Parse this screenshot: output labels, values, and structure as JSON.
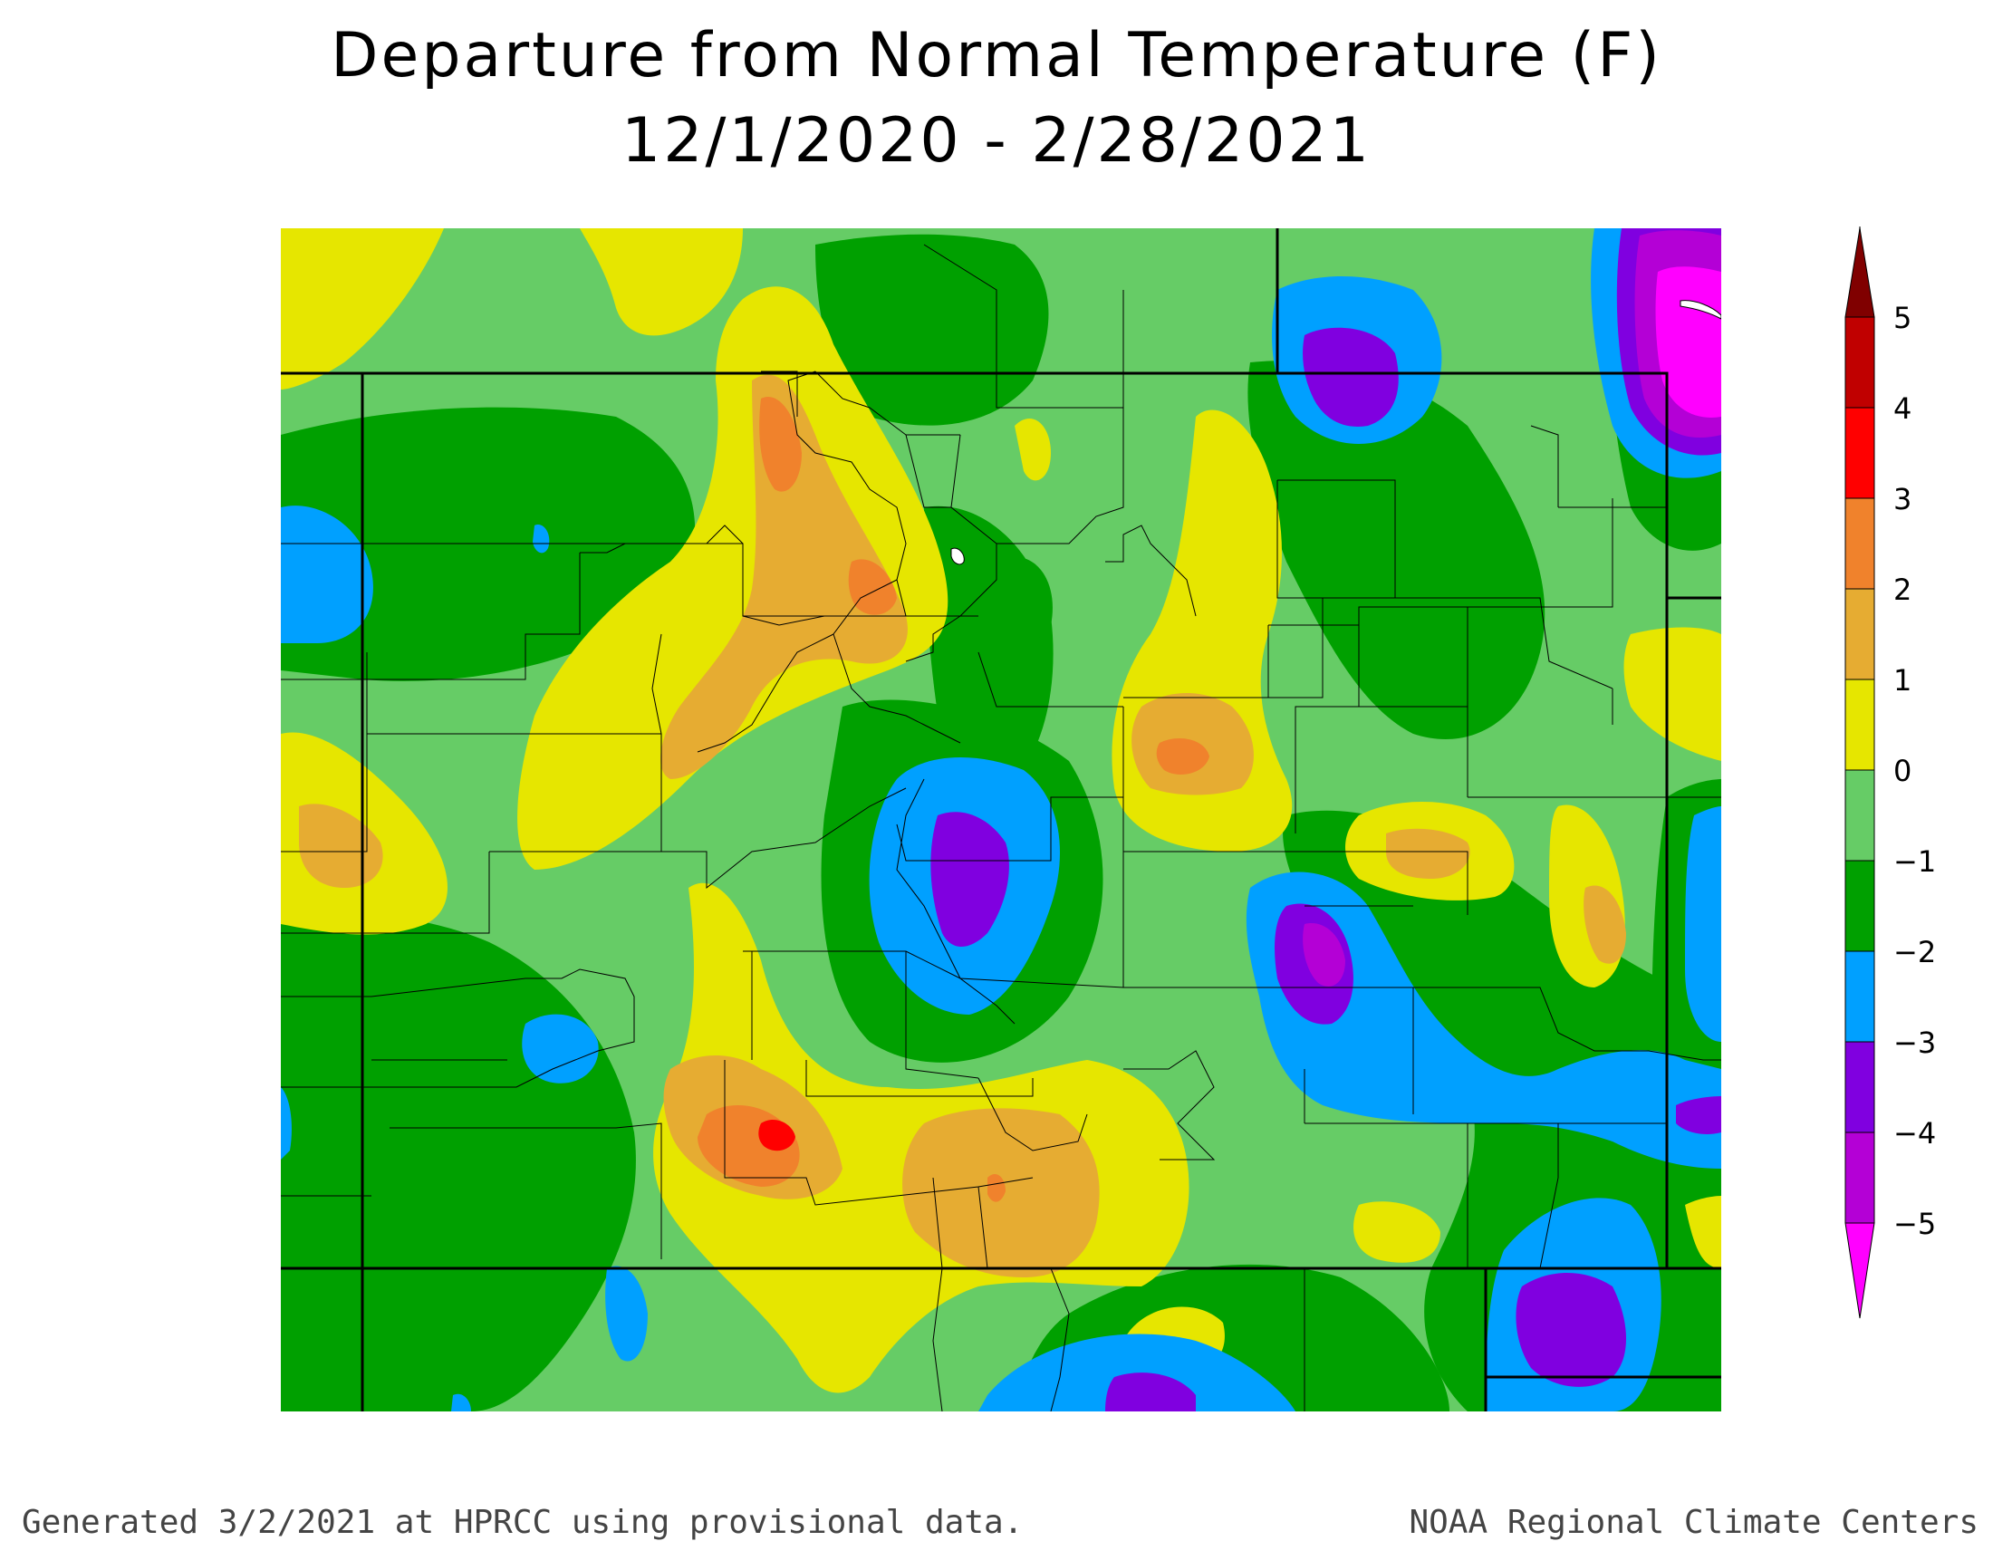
{
  "title": "Departure from Normal Temperature (F)",
  "subtitle": "12/1/2020 - 2/28/2021",
  "footer_left": "Generated 3/2/2021 at HPRCC using provisional data.",
  "footer_right": "NOAA Regional Climate Centers",
  "legend": {
    "labels": [
      "5",
      "4",
      "3",
      "2",
      "1",
      "0",
      "−1",
      "−2",
      "−3",
      "−4",
      "−5"
    ],
    "colors": [
      "#800000",
      "#c00000",
      "#ff0000",
      "#f0822c",
      "#e6ac32",
      "#e6e600",
      "#66cc66",
      "#00a000",
      "#00a0ff",
      "#8000e0",
      "#b400d6",
      "#ff00ff"
    ]
  },
  "palette": {
    "dark_red": "#800000",
    "red": "#ff0000",
    "orange": "#f0822c",
    "gold": "#e6ac32",
    "yellow": "#e6e600",
    "light_green": "#66cc66",
    "green": "#00a000",
    "blue": "#00a0ff",
    "violet": "#8000e0",
    "purple": "#b400d6",
    "magenta": "#ff00ff"
  }
}
